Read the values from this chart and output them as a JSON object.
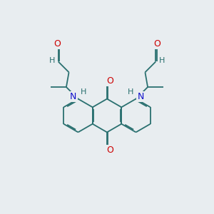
{
  "bg_color": "#e8edf0",
  "bond_color": "#2a7070",
  "N_color": "#1010cc",
  "O_color": "#cc0000",
  "H_color": "#2a7070",
  "bond_width": 1.3,
  "figsize": [
    3.0,
    3.0
  ],
  "dpi": 100,
  "xlim": [
    0,
    10
  ],
  "ylim": [
    0,
    10
  ]
}
